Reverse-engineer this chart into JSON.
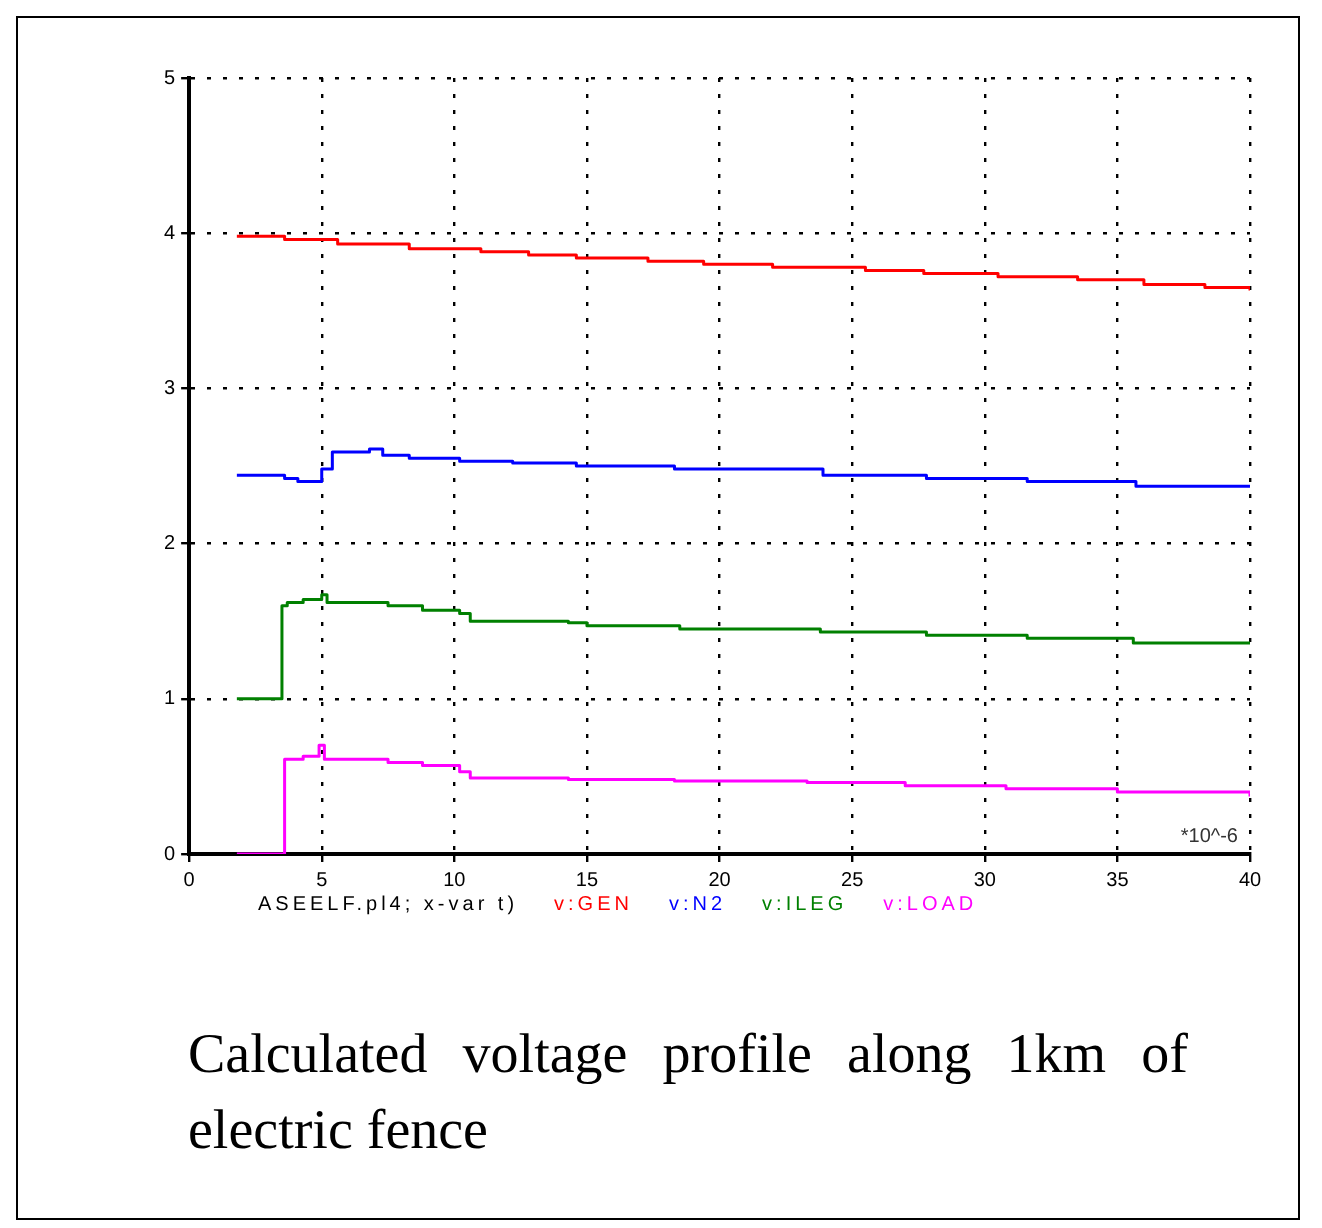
{
  "chart_data": {
    "type": "line",
    "annotations": [
      "*10^-6",
      "ASEELF.pl4; x-var t)",
      "Calculated voltage profile along 1km of electric fence"
    ],
    "xlim": [
      0,
      40
    ],
    "xticks": [
      0,
      5,
      10,
      15,
      20,
      25,
      30,
      35,
      40
    ],
    "ylim": [
      0,
      5
    ],
    "yticks": [
      0,
      1,
      2,
      3,
      4,
      5
    ],
    "grid": true,
    "legend": "bottom",
    "marker": "none",
    "line_style": "solid",
    "series": [
      {
        "name": "v:GEN",
        "color": "#ff0000",
        "type": "step",
        "x": [
          1.8,
          3.6,
          5.6,
          8.3,
          11,
          12.8,
          14.6,
          17.3,
          19.4,
          22,
          25.5,
          27.7,
          30.5,
          33.5,
          36,
          38.3,
          40
        ],
        "values": [
          3.98,
          3.96,
          3.93,
          3.9,
          3.88,
          3.86,
          3.84,
          3.82,
          3.8,
          3.78,
          3.76,
          3.74,
          3.72,
          3.7,
          3.67,
          3.65,
          3.63
        ]
      },
      {
        "name": "v:N2",
        "color": "#0000ff",
        "type": "step",
        "x": [
          1.8,
          3.6,
          4.1,
          5.0,
          5.4,
          6.8,
          7.3,
          8.3,
          10.2,
          12.2,
          14.6,
          18.3,
          23.9,
          27.8,
          31.6,
          35.7,
          40
        ],
        "values": [
          2.44,
          2.42,
          2.4,
          2.48,
          2.59,
          2.61,
          2.57,
          2.55,
          2.53,
          2.52,
          2.5,
          2.48,
          2.44,
          2.42,
          2.4,
          2.37,
          2.37
        ]
      },
      {
        "name": "v:ILEG",
        "color": "#008000",
        "type": "step",
        "x": [
          1.8,
          3.3,
          3.5,
          3.7,
          4.3,
          5.0,
          5.2,
          7.5,
          8.8,
          10.2,
          10.6,
          14.3,
          15,
          18.5,
          23.8,
          27.8,
          31.6,
          35.6,
          40
        ],
        "values": [
          1.0,
          1.0,
          1.6,
          1.62,
          1.64,
          1.67,
          1.62,
          1.6,
          1.57,
          1.55,
          1.5,
          1.49,
          1.47,
          1.45,
          1.43,
          1.41,
          1.39,
          1.36,
          1.36
        ]
      },
      {
        "name": "v:LOAD",
        "color": "#ff00ff",
        "type": "step",
        "x": [
          1.8,
          3.5,
          3.6,
          4.3,
          4.9,
          5.1,
          7.5,
          8.8,
          10.2,
          10.6,
          14.3,
          18.3,
          23.3,
          27,
          30.8,
          35,
          40
        ],
        "values": [
          0,
          0,
          0.61,
          0.63,
          0.7,
          0.61,
          0.59,
          0.57,
          0.53,
          0.49,
          0.48,
          0.47,
          0.46,
          0.44,
          0.42,
          0.4,
          0.37
        ]
      }
    ]
  }
}
